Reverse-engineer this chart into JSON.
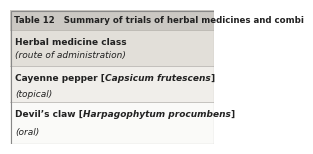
{
  "title": "Table 12   Summary of trials of herbal medicines and combi",
  "title_bg": "#cbc8c3",
  "title_text_color": "#222222",
  "header_text_line1": "Herbal medicine class",
  "header_text_line2": "(route of administration)",
  "header_bg": "#e2dfd9",
  "row1_bold_start": "Cayenne pepper [",
  "row1_italic": "Capsicum frutescens",
  "row1_bold_end": "]",
  "row1_sub": "(topical)",
  "row1_bg": "#f0eeea",
  "row2_bold_start": "Devil’s claw [",
  "row2_italic": "Harpagophytum procumbens",
  "row2_bold_end": "]",
  "row2_sub": "(oral)",
  "row2_bg": "#fafaf8",
  "border_color": "#888888",
  "line_color": "#b0ada8",
  "text_color": "#222222",
  "title_fontsize": 6.2,
  "body_fontsize": 6.5
}
